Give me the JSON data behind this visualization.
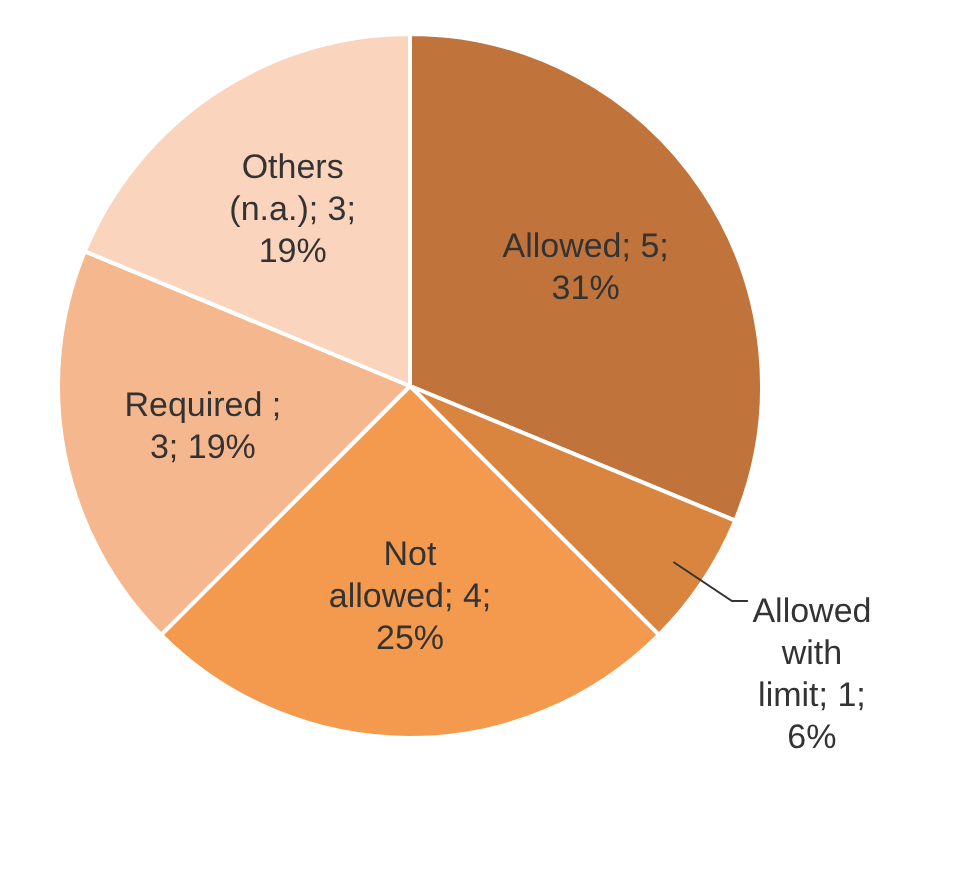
{
  "chart_data": {
    "type": "pie",
    "categories": [
      "Allowed",
      "Allowed with limit",
      "Not allowed",
      "Required",
      "Others (n.a.)"
    ],
    "values": [
      5,
      1,
      4,
      3,
      3
    ],
    "colors": [
      "#c0743c",
      "#d9843f",
      "#f39a4e",
      "#f5b78e",
      "#fad4bc"
    ],
    "value_labels": [
      "; 5; 31%",
      "; 1; 6%",
      "; 4; 25%",
      " ; 3; 19%",
      "; 3; 19%"
    ],
    "legend": false
  }
}
